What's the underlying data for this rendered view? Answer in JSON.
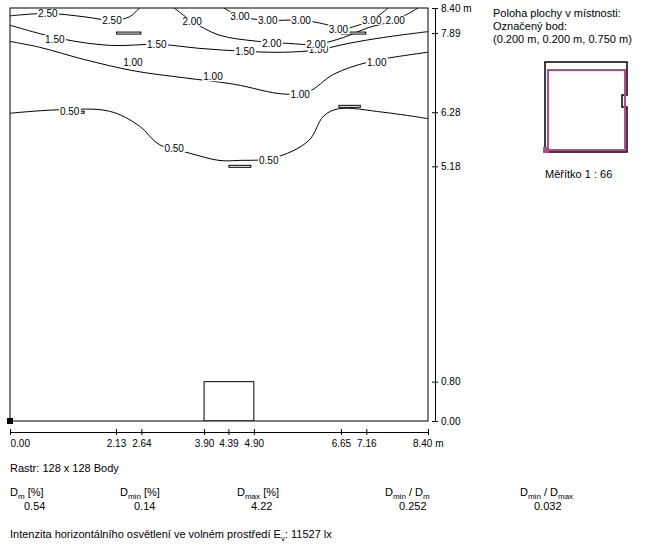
{
  "chart_data": {
    "type": "contour",
    "xlim": [
      0,
      8.4
    ],
    "ylim": [
      0,
      8.4
    ],
    "xticks": [
      {
        "value": 0,
        "label": "0.00"
      },
      {
        "value": 2.13,
        "label": "2.13"
      },
      {
        "value": 2.64,
        "label": "2.64"
      },
      {
        "value": 3.9,
        "label": "3.90"
      },
      {
        "value": 4.39,
        "label": "4.39"
      },
      {
        "value": 4.9,
        "label": "4.90"
      },
      {
        "value": 6.65,
        "label": "6.65"
      },
      {
        "value": 7.16,
        "label": "7.16"
      },
      {
        "value": 8.4,
        "label": "8.40 m"
      }
    ],
    "yticks": [
      {
        "value": 0,
        "label": "0.00"
      },
      {
        "value": 0.8,
        "label": "0.80"
      },
      {
        "value": 5.18,
        "label": "5.18"
      },
      {
        "value": 6.28,
        "label": "6.28"
      },
      {
        "value": 7.89,
        "label": "7.89"
      },
      {
        "value": 8.4,
        "label": "8.40 m"
      }
    ],
    "contours": [
      {
        "label": "0.50",
        "x": [
          0,
          1.0,
          2.0,
          2.6,
          3.0,
          3.6,
          4.2,
          4.6,
          5.3,
          6.0,
          6.3,
          6.6,
          7.5,
          8.4
        ],
        "y": [
          6.26,
          6.33,
          6.3,
          6.0,
          5.62,
          5.45,
          5.3,
          5.3,
          5.35,
          5.7,
          6.2,
          6.35,
          6.28,
          6.15
        ],
        "label_positions": [
          [
            1.2,
            6.3
          ],
          [
            3.3,
            5.55
          ],
          [
            5.2,
            5.3
          ]
        ]
      },
      {
        "label": "1.00",
        "x": [
          0,
          0.6,
          1.5,
          2.5,
          3.5,
          4.5,
          5.5,
          6.0,
          6.5,
          7.2,
          8.4
        ],
        "y": [
          7.72,
          7.6,
          7.35,
          7.12,
          6.98,
          6.85,
          6.65,
          6.7,
          7.05,
          7.3,
          7.5
        ],
        "label_positions": [
          [
            2.47,
            7.3
          ],
          [
            4.08,
            7.0
          ],
          [
            5.83,
            6.65
          ],
          [
            7.37,
            7.3
          ]
        ]
      },
      {
        "label": "1.50",
        "x": [
          0,
          1.0,
          2.0,
          3.0,
          3.8,
          4.7,
          5.5,
          6.2,
          6.8,
          7.5,
          8.4
        ],
        "y": [
          8.05,
          7.78,
          7.64,
          7.66,
          7.58,
          7.52,
          7.5,
          7.55,
          7.68,
          7.8,
          7.92
        ],
        "label_positions": [
          [
            0.9,
            7.76
          ],
          [
            2.95,
            7.66
          ],
          [
            4.72,
            7.52
          ],
          [
            6.2,
            7.55
          ]
        ]
      },
      {
        "label": "2.00",
        "x": [
          3.3,
          3.66,
          4.2,
          5.0,
          5.6,
          6.15,
          6.7,
          7.2,
          7.74,
          8.2
        ],
        "y": [
          8.4,
          8.13,
          7.85,
          7.72,
          7.68,
          7.66,
          7.8,
          8.0,
          8.15,
          8.4
        ],
        "label_positions": [
          [
            3.66,
            8.13
          ],
          [
            5.26,
            7.68
          ],
          [
            6.15,
            7.66
          ],
          [
            7.74,
            8.15
          ]
        ]
      },
      {
        "label": "2.50",
        "x": [
          0,
          0.76,
          1.5,
          2.05,
          2.4,
          2.6
        ],
        "y": [
          8.24,
          8.29,
          8.22,
          8.15,
          8.22,
          8.4
        ],
        "label_positions": [
          [
            0.76,
            8.29
          ],
          [
            2.05,
            8.15
          ]
        ]
      },
      {
        "label": "3.00",
        "x": [
          4.3,
          4.62,
          5.18,
          5.85,
          6.4,
          6.6,
          7.0,
          7.27,
          7.6
        ],
        "y": [
          8.4,
          8.23,
          8.15,
          8.15,
          8.05,
          7.96,
          8.05,
          8.15,
          8.4
        ],
        "label_positions": [
          [
            4.62,
            8.23
          ],
          [
            5.18,
            8.15
          ],
          [
            5.85,
            8.15
          ],
          [
            6.6,
            7.96
          ],
          [
            7.27,
            8.15
          ]
        ]
      }
    ],
    "fixtures": [
      {
        "x": [
          2.13,
          2.64
        ],
        "y": 7.89
      },
      {
        "x": [
          6.65,
          7.16
        ],
        "y": 7.89
      },
      {
        "x": [
          1.0,
          1.5
        ],
        "y": 6.28
      },
      {
        "x": [
          6.6,
          7.05
        ],
        "y": 6.4
      },
      {
        "x": [
          4.39,
          4.85
        ],
        "y": 5.18
      }
    ],
    "door": {
      "x": [
        3.9,
        4.9
      ],
      "y": [
        0,
        0.8
      ]
    },
    "info_lines": [
      "Poloha plochy v místnosti:",
      "Označený bod:",
      "(0.200 m, 0.200 m, 0.750 m)"
    ],
    "scale_text": "Měřítko 1 : 66",
    "raster": "Rastr: 128 x 128 Body",
    "stats": [
      {
        "label": [
          {
            "text": "D"
          },
          {
            "sub": "m"
          },
          {
            "text": " [%]"
          }
        ],
        "value": 0.54
      },
      {
        "label": [
          {
            "text": "D"
          },
          {
            "sub": "min"
          },
          {
            "text": " [%]"
          }
        ],
        "value": 0.14
      },
      {
        "label": [
          {
            "text": "D"
          },
          {
            "sub": "max"
          },
          {
            "text": " [%]"
          }
        ],
        "value": 4.22
      },
      {
        "label": [
          {
            "text": "D"
          },
          {
            "sub": "min"
          },
          {
            "text": " / D"
          },
          {
            "sub": "m"
          }
        ],
        "value": 0.252
      },
      {
        "label": [
          {
            "text": "D"
          },
          {
            "sub": "min"
          },
          {
            "text": " / D"
          },
          {
            "sub": "max"
          }
        ],
        "value": 0.032
      }
    ],
    "illuminance": {
      "label": [
        {
          "text": "Intenzita horizontálního osvětlení ve volném prostředí E"
        },
        {
          "sub": "v"
        },
        {
          "text": ": "
        }
      ],
      "value": 11527,
      "unit": "lx"
    }
  }
}
